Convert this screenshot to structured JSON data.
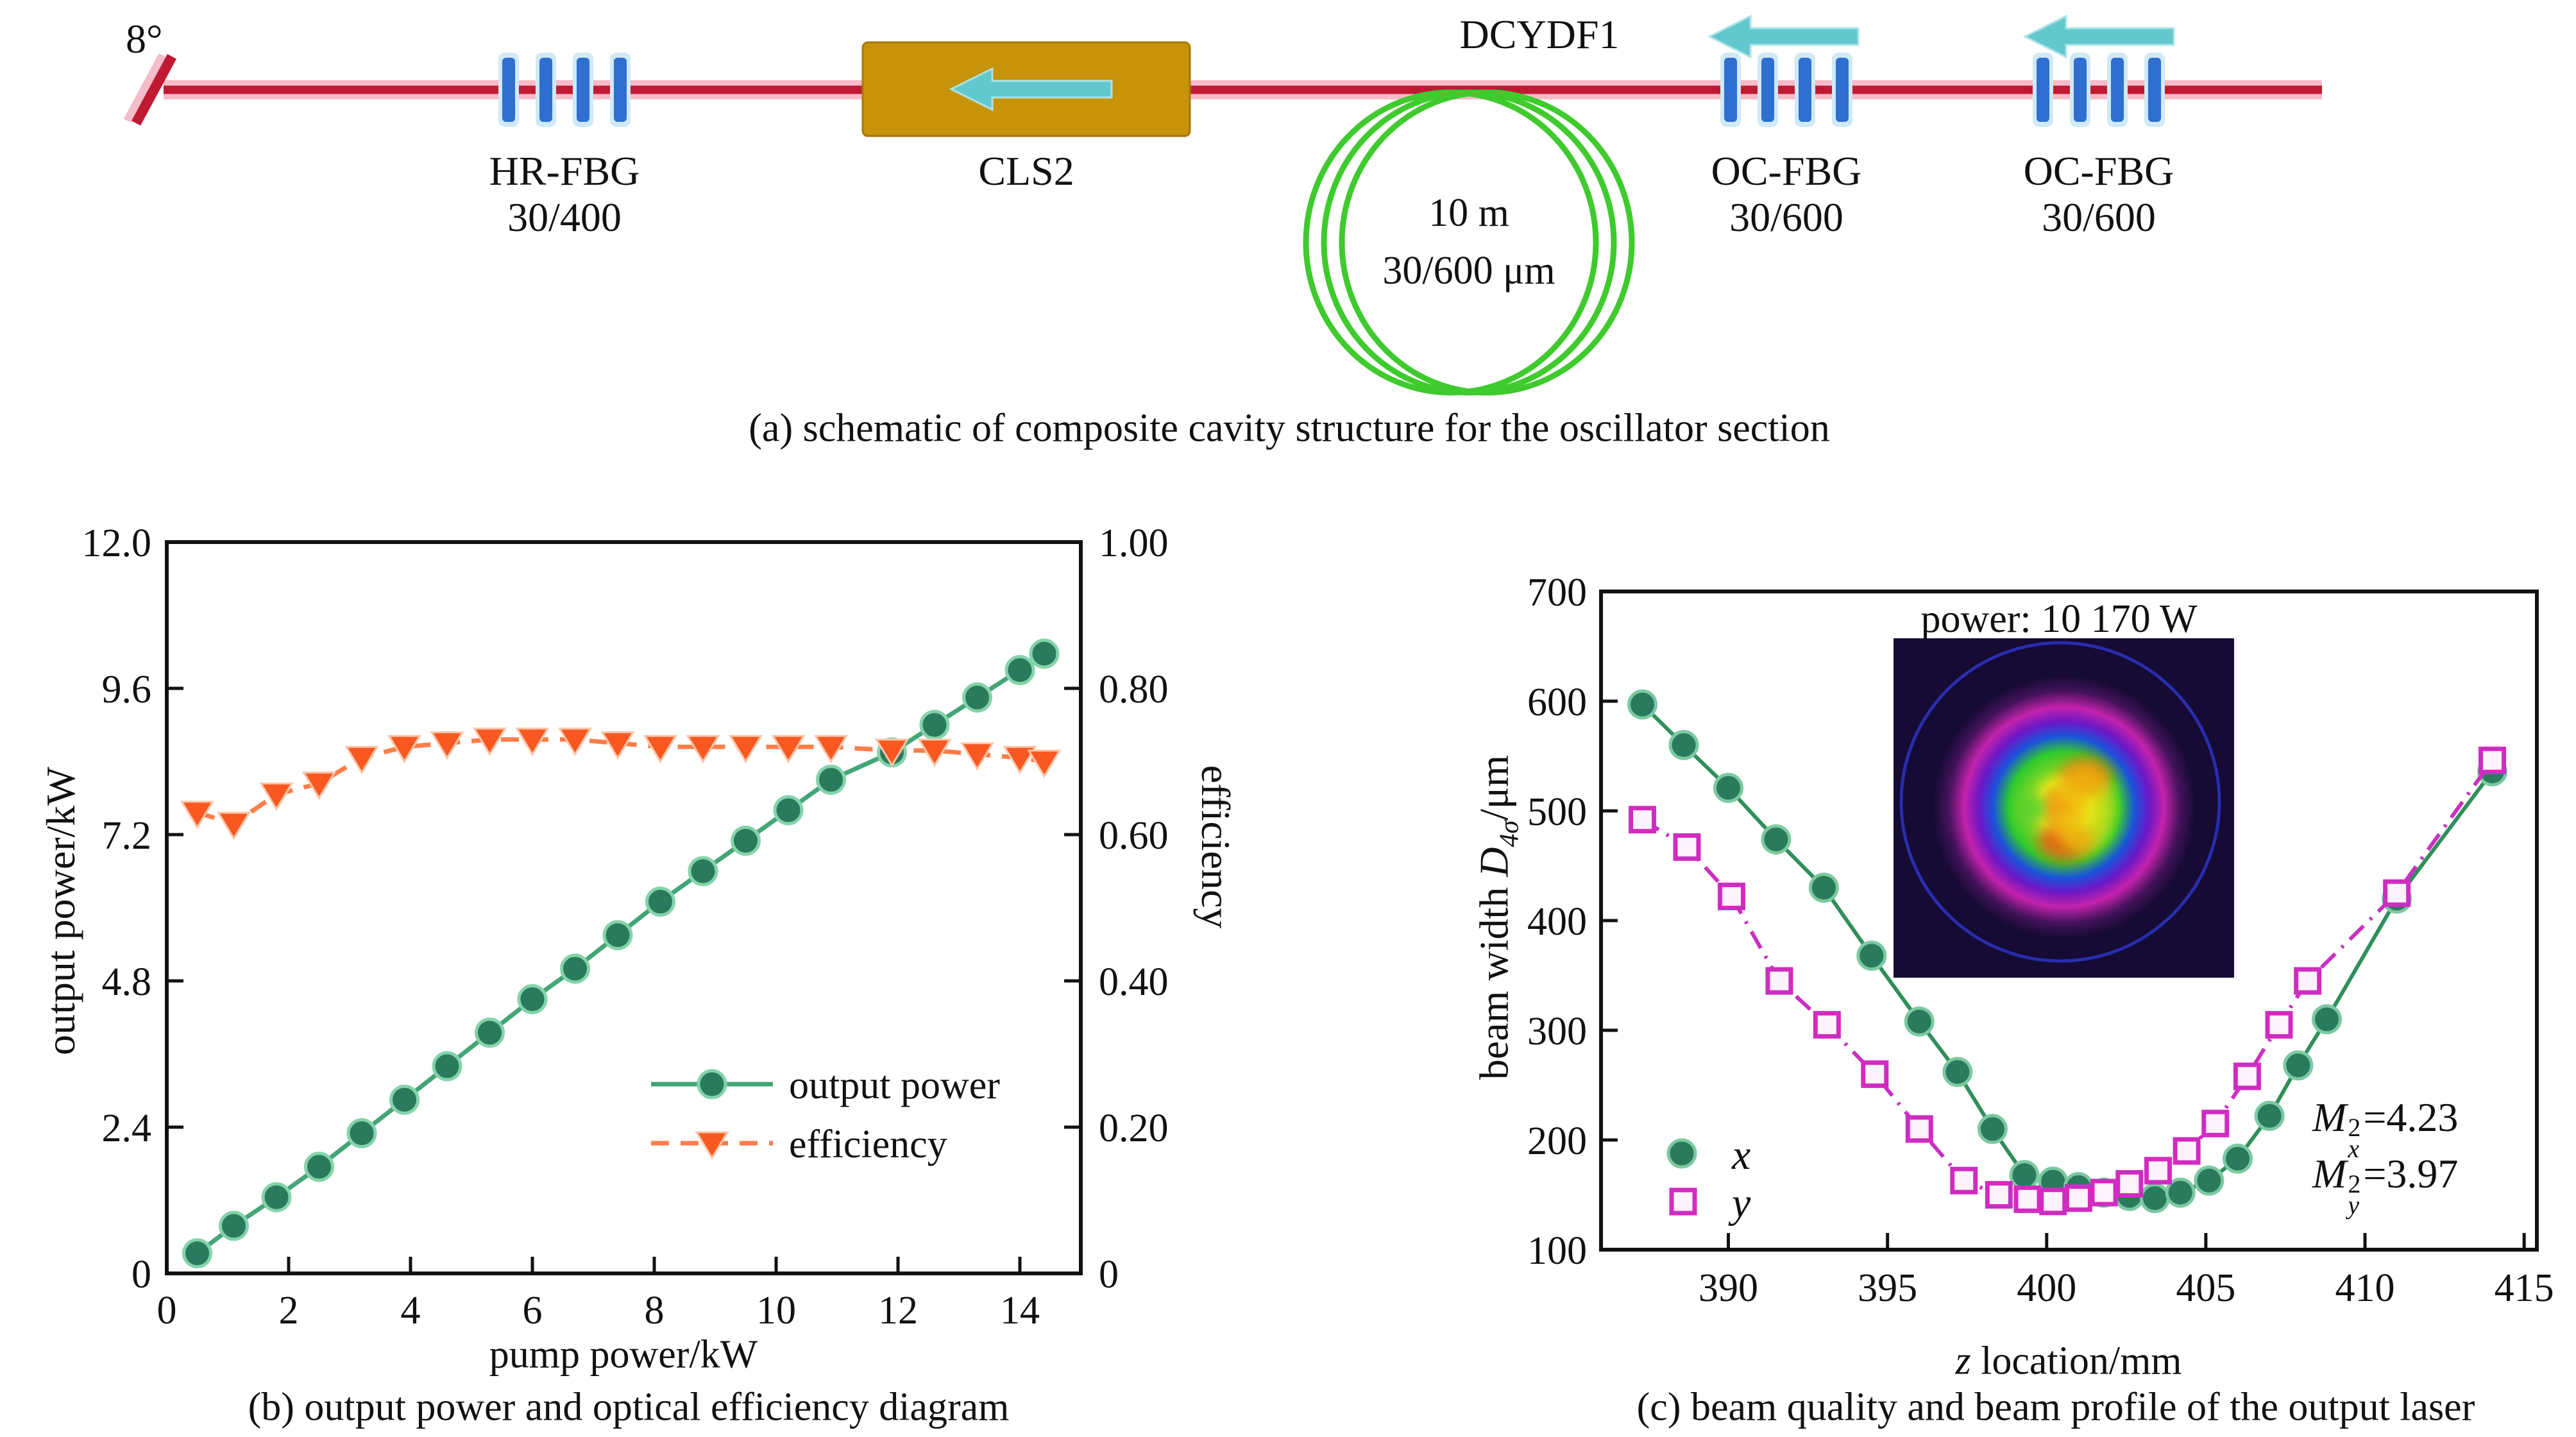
{
  "figure": {
    "panel_a": {
      "caption": "(a) schematic of composite cavity structure for the oscillator section",
      "angle_label": "8°",
      "hr_fbg": {
        "line1": "HR-FBG",
        "line2": "30/400"
      },
      "cls2": {
        "label": "CLS2"
      },
      "dcydf1": {
        "label": "DCYDF1"
      },
      "coil": {
        "line1": "10 m",
        "line2": "30/600 μm"
      },
      "oc_fbg1": {
        "line1": "OC-FBG",
        "line2": "30/600"
      },
      "oc_fbg2": {
        "line1": "OC-FBG",
        "line2": "30/600"
      }
    }
  },
  "chart_data": [
    {
      "id": "b",
      "type": "line",
      "xlabel": "pump power/kW",
      "ylabel_left": "output power/kW",
      "ylabel_right": "efficiency",
      "caption": "(b) output power and optical efficiency diagram",
      "xlim": [
        0,
        15
      ],
      "xticks": [
        0,
        2,
        4,
        6,
        8,
        10,
        12,
        14
      ],
      "ylim_left": [
        0,
        12
      ],
      "yticks_left": [
        {
          "v": 0,
          "label": "0"
        },
        {
          "v": 2.4,
          "label": "2.4"
        },
        {
          "v": 4.8,
          "label": "4.8"
        },
        {
          "v": 7.2,
          "label": "7.2"
        },
        {
          "v": 9.6,
          "label": "9.6"
        },
        {
          "v": 12,
          "label": "12.0"
        }
      ],
      "ylim_right": [
        0,
        1
      ],
      "yticks_right": [
        {
          "v": 0,
          "label": "0"
        },
        {
          "v": 0.2,
          "label": "0.20"
        },
        {
          "v": 0.4,
          "label": "0.40"
        },
        {
          "v": 0.6,
          "label": "0.60"
        },
        {
          "v": 0.8,
          "label": "0.80"
        },
        {
          "v": 1,
          "label": "1.00"
        }
      ],
      "grid": false,
      "legend_position": "lower right inside",
      "series": [
        {
          "name": "output power",
          "axis": "left",
          "marker": "circle",
          "line": "solid",
          "color": "#43a578",
          "fill": "#2a7a5e",
          "edge": "#85d3ab",
          "x": [
            0.5,
            1.1,
            1.8,
            2.5,
            3.2,
            3.9,
            4.6,
            5.3,
            6.0,
            6.7,
            7.4,
            8.1,
            8.8,
            9.5,
            10.2,
            10.9,
            11.9,
            12.6,
            13.3,
            14.0,
            14.4
          ],
          "y": [
            0.33,
            0.78,
            1.25,
            1.75,
            2.3,
            2.85,
            3.4,
            3.95,
            4.5,
            5.0,
            5.55,
            6.1,
            6.6,
            7.1,
            7.6,
            8.1,
            8.55,
            9.0,
            9.45,
            9.9,
            10.17
          ]
        },
        {
          "name": "efficiency",
          "axis": "right",
          "marker": "triangle-down",
          "line": "dashed",
          "color": "#fd7e4a",
          "fill": "#f95821",
          "edge": "#fdc6a8",
          "x": [
            0.5,
            1.1,
            1.8,
            2.5,
            3.2,
            3.9,
            4.6,
            5.3,
            6.0,
            6.7,
            7.4,
            8.1,
            8.8,
            9.5,
            10.2,
            10.9,
            11.9,
            12.6,
            13.3,
            14.0,
            14.4
          ],
          "y": [
            0.63,
            0.615,
            0.655,
            0.67,
            0.705,
            0.72,
            0.725,
            0.73,
            0.73,
            0.73,
            0.725,
            0.72,
            0.72,
            0.72,
            0.72,
            0.72,
            0.715,
            0.715,
            0.71,
            0.705,
            0.7
          ]
        }
      ]
    },
    {
      "id": "c",
      "type": "scatter-line",
      "xlabel_var": "z",
      "xlabel_rest": " location/mm",
      "ylabel_pre": "beam width ",
      "ylabel_var": "D",
      "ylabel_sub": "4σ",
      "ylabel_post": "/μm",
      "caption": "(c) beam quality and beam profile of the output laser",
      "annotation_power": "power: 10 170 W",
      "m2": [
        {
          "base": "M",
          "sub": "x",
          "sup": "2",
          "eq": "=4.23"
        },
        {
          "base": "M",
          "sub": "y",
          "sup": "2",
          "eq": "=3.97"
        }
      ],
      "legend": [
        {
          "label": "x",
          "marker": "circle"
        },
        {
          "label": "y",
          "marker": "square"
        }
      ],
      "xlim": [
        386,
        415.4
      ],
      "xticks": [
        390,
        395,
        400,
        405,
        410,
        415
      ],
      "ylim": [
        100,
        700
      ],
      "yticks": [
        100,
        200,
        300,
        400,
        500,
        600,
        700
      ],
      "grid": false,
      "inset": {
        "content": "beam profile image at maximum power"
      },
      "series": [
        {
          "name": "x",
          "marker": "circle",
          "line": "solid",
          "color": "#2f8f5b",
          "fill": "#2a7a5e",
          "edge": "#7cc9a2",
          "x": [
            387.3,
            388.6,
            390.0,
            391.5,
            393.0,
            394.5,
            396.0,
            397.2,
            398.3,
            399.3,
            400.2,
            401.0,
            401.8,
            402.6,
            403.4,
            404.2,
            405.1,
            406.0,
            407.0,
            407.9,
            408.8,
            411.0,
            414.0
          ],
          "y": [
            597,
            560,
            521,
            474,
            430,
            368,
            308,
            262,
            210,
            168,
            162,
            157,
            152,
            149,
            147,
            152,
            163,
            183,
            222,
            268,
            310,
            420,
            536
          ]
        },
        {
          "name": "y",
          "marker": "square",
          "line": "dashdot",
          "color": "#cb2fc0",
          "fill": "#fdf3fc",
          "edge": "#d02cc1",
          "x": [
            387.3,
            388.7,
            390.1,
            391.6,
            393.1,
            394.6,
            396.0,
            397.4,
            398.5,
            399.4,
            400.2,
            401.0,
            401.8,
            402.6,
            403.5,
            404.4,
            405.3,
            406.3,
            407.3,
            408.2,
            411.0,
            414.0
          ],
          "y": [
            492,
            467,
            422,
            345,
            305,
            260,
            210,
            163,
            150,
            146,
            144,
            147,
            152,
            160,
            172,
            190,
            215,
            258,
            305,
            345,
            425,
            546
          ]
        }
      ]
    }
  ],
  "colors": {
    "fiber_red": "#c01a33",
    "fiber_glow": "#f6bcca",
    "fbg_blue": "#2f6fd0",
    "fbg_glow": "#cfeaf6",
    "cls2_gold": "#c6930b",
    "arrow_cyan": "#62c8ce",
    "coil_green": "#3fca2e",
    "axis": "#111111",
    "inset_bg": "#150b34",
    "inset_ring_blue": "#2a2fb5"
  }
}
